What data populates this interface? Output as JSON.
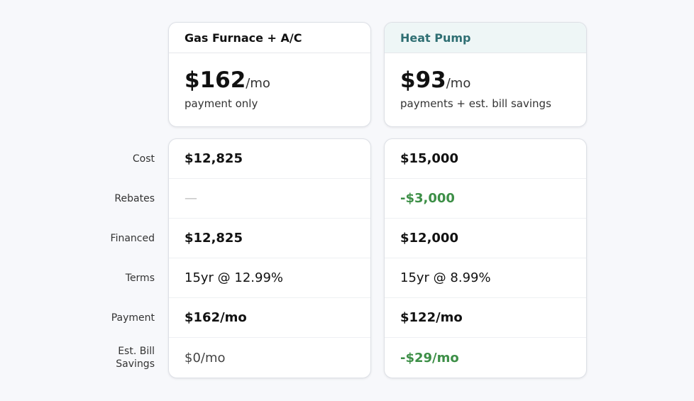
{
  "row_labels": [
    "Cost",
    "Rebates",
    "Financed",
    "Terms",
    "Payment",
    "Est. Bill Savings"
  ],
  "plans": [
    {
      "name": "Gas Furnace + A/C",
      "price": "$162",
      "unit": "/mo",
      "note": "payment only",
      "rows": [
        "$12,825",
        "—",
        "$12,825",
        "15yr @ 12.99%",
        "$162/mo",
        "$0/mo"
      ]
    },
    {
      "name": "Heat Pump",
      "price": "$93",
      "unit": "/mo",
      "note": "payments + est. bill savings",
      "rows": [
        "$15,000",
        "-$3,000",
        "$12,000",
        "15yr @ 8.99%",
        "$122/mo",
        "-$29/mo"
      ]
    }
  ]
}
